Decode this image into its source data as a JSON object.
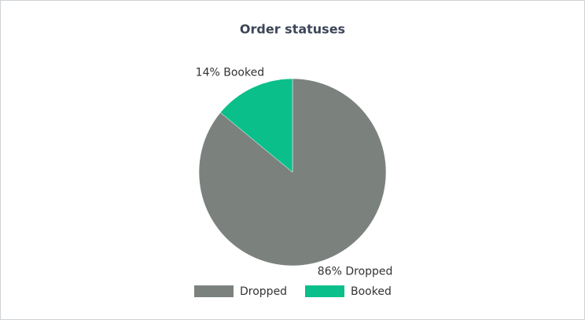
{
  "chart_data": {
    "type": "pie",
    "title": "Order statuses",
    "categories": [
      "Dropped",
      "Booked"
    ],
    "values": [
      86,
      14
    ],
    "value_labels": [
      "86% Dropped",
      "14% Booked"
    ],
    "colors": [
      "#7b827e",
      "#0abf8a"
    ],
    "legend": "bottom"
  }
}
